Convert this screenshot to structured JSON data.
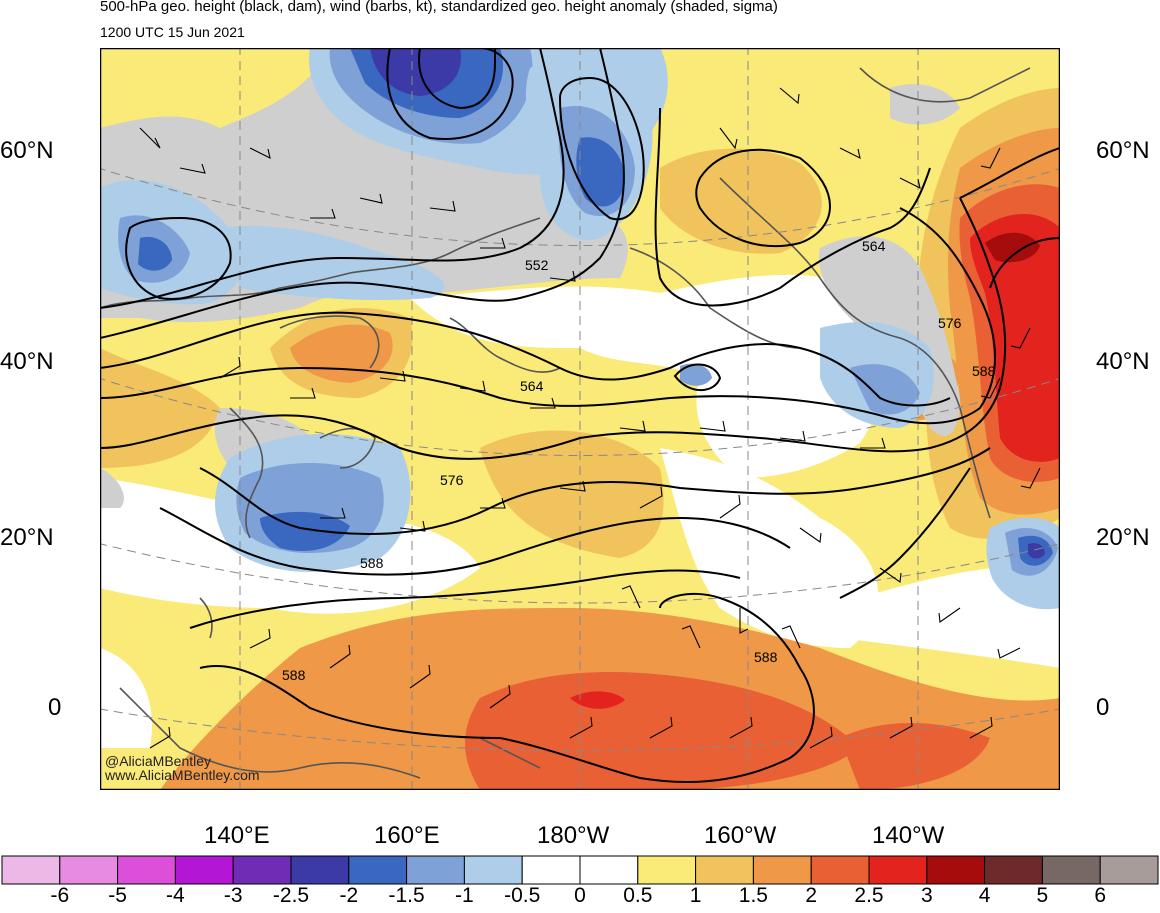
{
  "header": {
    "title": "500-hPa geo. height (black, dam), wind (barbs, kt), standardized geo. height anomaly (shaded, sigma)",
    "valid_time": "1200 UTC 15 Jun 2021"
  },
  "axes": {
    "lat_left": [
      "60°N",
      "40°N",
      "20°N",
      "0"
    ],
    "lat_right": [
      "60°N",
      "40°N",
      "20°N",
      "0"
    ],
    "lon": [
      "140°E",
      "160°E",
      "180°W",
      "160°W",
      "140°W"
    ]
  },
  "contour_labels": [
    "552",
    "564",
    "576",
    "588",
    "564",
    "576",
    "588",
    "588",
    "588"
  ],
  "credit": {
    "handle": "@AliciaMBentley",
    "website": "www.AliciaMBentley.com"
  },
  "colorbar": {
    "labels": [
      "-6",
      "-5",
      "-4",
      "-3",
      "-2.5",
      "-2",
      "-1.5",
      "-1",
      "-0.5",
      "0",
      "0.5",
      "1",
      "1.5",
      "2",
      "2.5",
      "3",
      "4",
      "5",
      "6"
    ],
    "colors": [
      "#ecb8e6",
      "#e68ae2",
      "#dc4fd8",
      "#b416d6",
      "#6e2db4",
      "#3b3aa6",
      "#3a68c0",
      "#7ea2d8",
      "#aecde8",
      "#ffffff",
      "#ffffff",
      "#faea78",
      "#f1c35c",
      "#ee9848",
      "#ea6035",
      "#e2231e",
      "#a50c0c",
      "#6e2a2a",
      "#776865",
      "#a79c9a"
    ]
  },
  "colors": {
    "anom_pos_light": "#faea78",
    "anom_pos_mid": "#f1c35c",
    "anom_pos_orange": "#ee9848",
    "anom_pos_red": "#ea6035",
    "anom_pos_bright": "#e2231e",
    "anom_pos_dark": "#a50c0c",
    "anom_neg_light": "#aecde8",
    "anom_neg_mid": "#7ea2d8",
    "anom_neg_blue": "#3a68c0",
    "anom_neg_deep": "#3b3aa6",
    "terrain_mask": "#cfcfcf"
  }
}
